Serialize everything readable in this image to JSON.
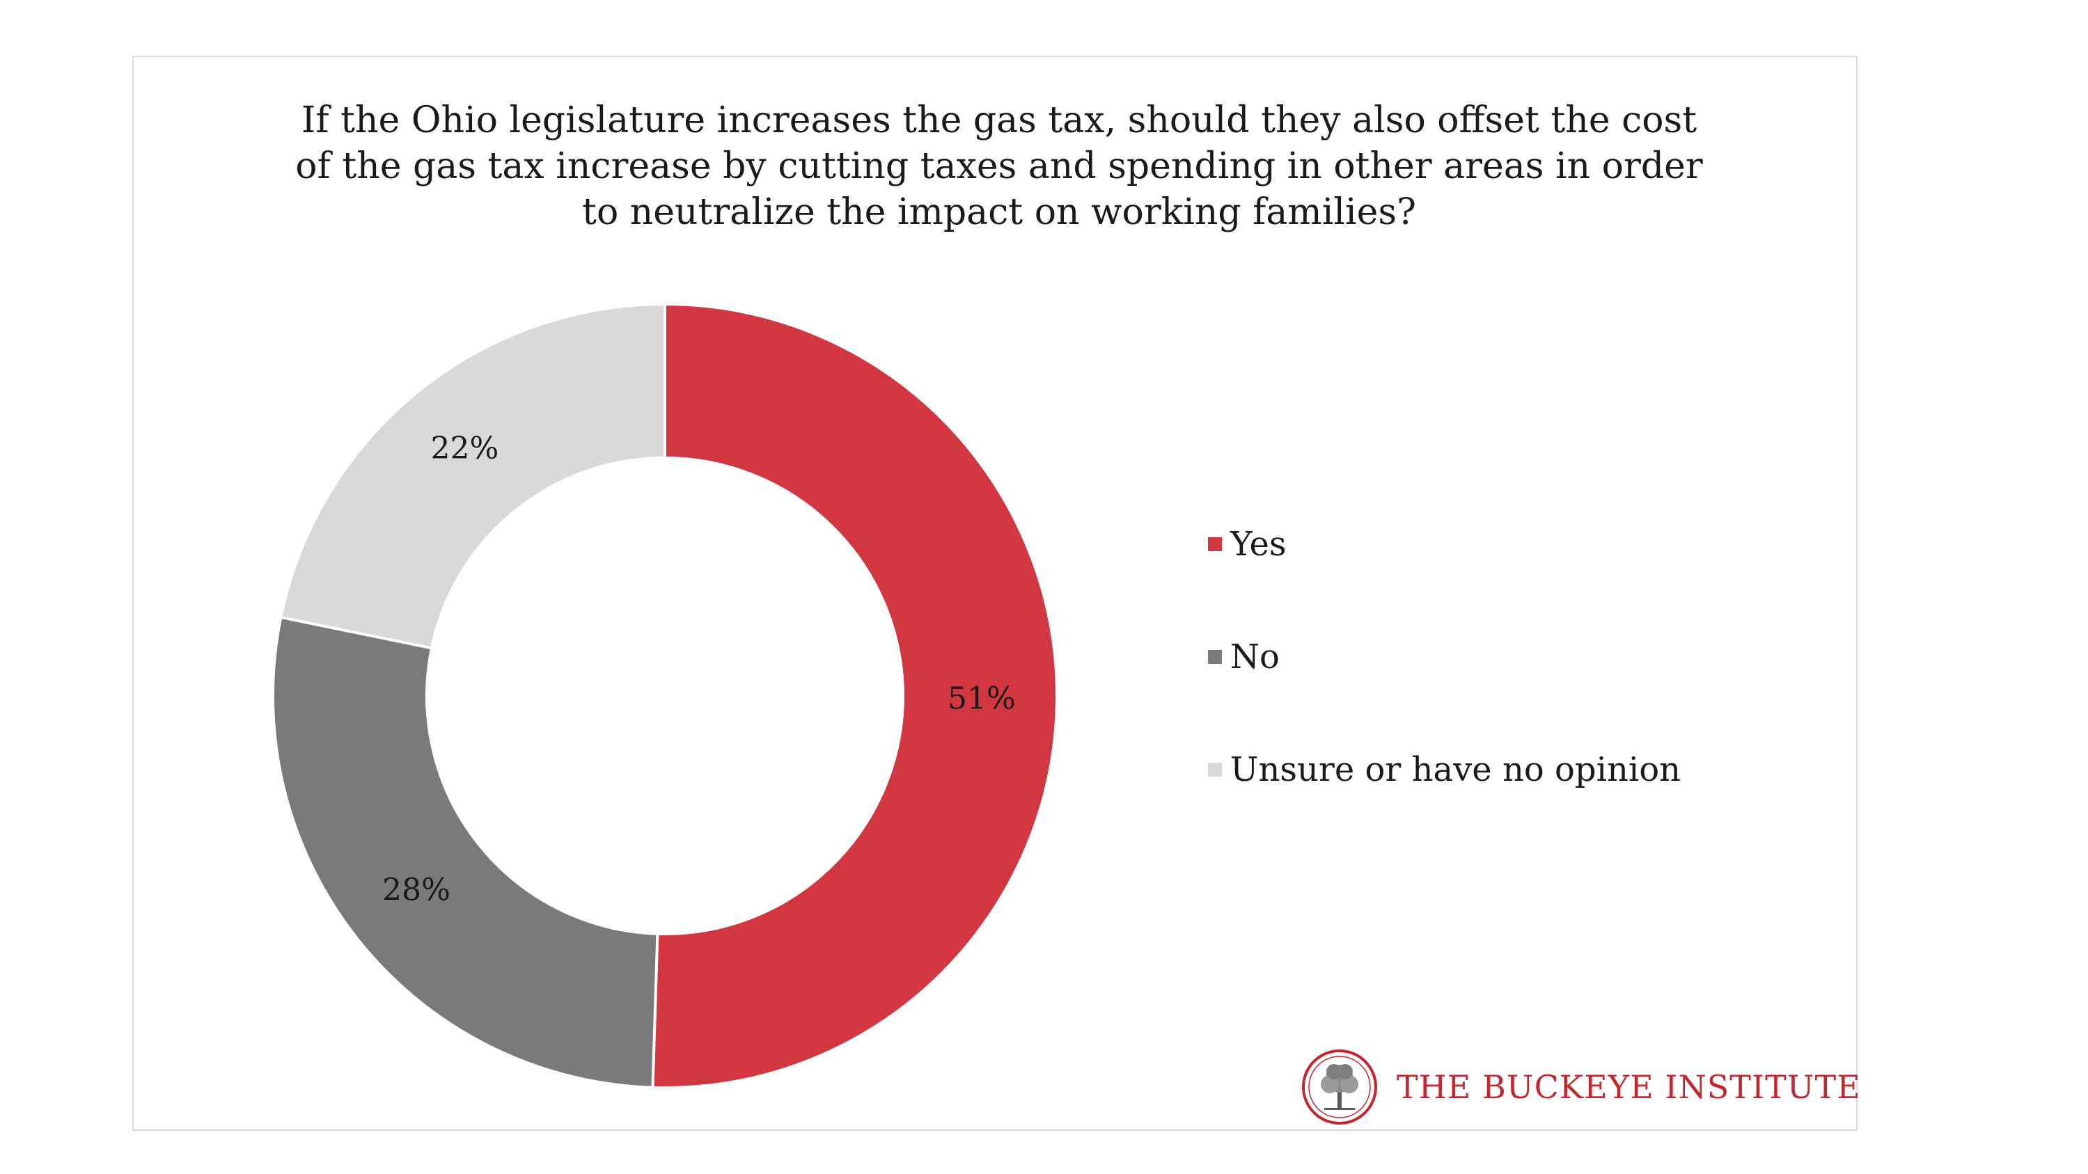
{
  "chart_data": {
    "type": "pie",
    "title": "If the Ohio legislature increases the gas tax, should they also offset the cost of the gas tax increase by cutting taxes and spending in other areas in order to neutralize the impact on working families?",
    "categories": [
      "Yes",
      "No",
      "Unsure or have no opinion"
    ],
    "values": [
      51,
      28,
      22
    ],
    "labels": [
      "51%",
      "28%",
      "22%"
    ],
    "colors": [
      "#d13641",
      "#7a7a7a",
      "#d9d9d9"
    ],
    "donut": true,
    "legend_position": "right"
  },
  "legend": {
    "items": [
      {
        "label": "Yes",
        "color": "#d13641"
      },
      {
        "label": "No",
        "color": "#7a7a7a"
      },
      {
        "label": "Unsure or have no opinion",
        "color": "#d9d9d9"
      }
    ]
  },
  "branding": {
    "logo_text": "THE BUCKEYE INSTITUTE",
    "logo_color": "#c4262e",
    "logo_icon": "tree-seal-icon"
  }
}
